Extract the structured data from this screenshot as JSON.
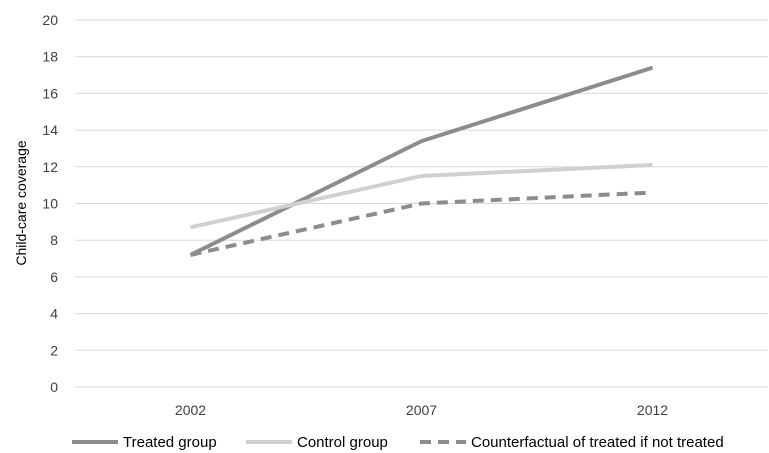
{
  "chart_data": {
    "type": "line",
    "title": "",
    "xlabel": "",
    "ylabel": "Child-care coverage",
    "ylim": [
      0,
      20
    ],
    "yticks": [
      0,
      2,
      4,
      6,
      8,
      10,
      12,
      14,
      16,
      18,
      20
    ],
    "categories": [
      "2002",
      "2007",
      "2012"
    ],
    "grid": "horizontal",
    "legend_position": "bottom",
    "series": [
      {
        "name": "Treated group",
        "values": [
          7.2,
          13.4,
          17.4
        ],
        "color": "#8c8c8c",
        "dash": "solid"
      },
      {
        "name": "Control group",
        "values": [
          8.7,
          11.5,
          12.1
        ],
        "color": "#d0d0d0",
        "dash": "solid"
      },
      {
        "name": "Counterfactual of treated if not treated",
        "values": [
          7.2,
          10.0,
          10.6
        ],
        "color": "#8c8c8c",
        "dash": "dashed"
      }
    ]
  }
}
